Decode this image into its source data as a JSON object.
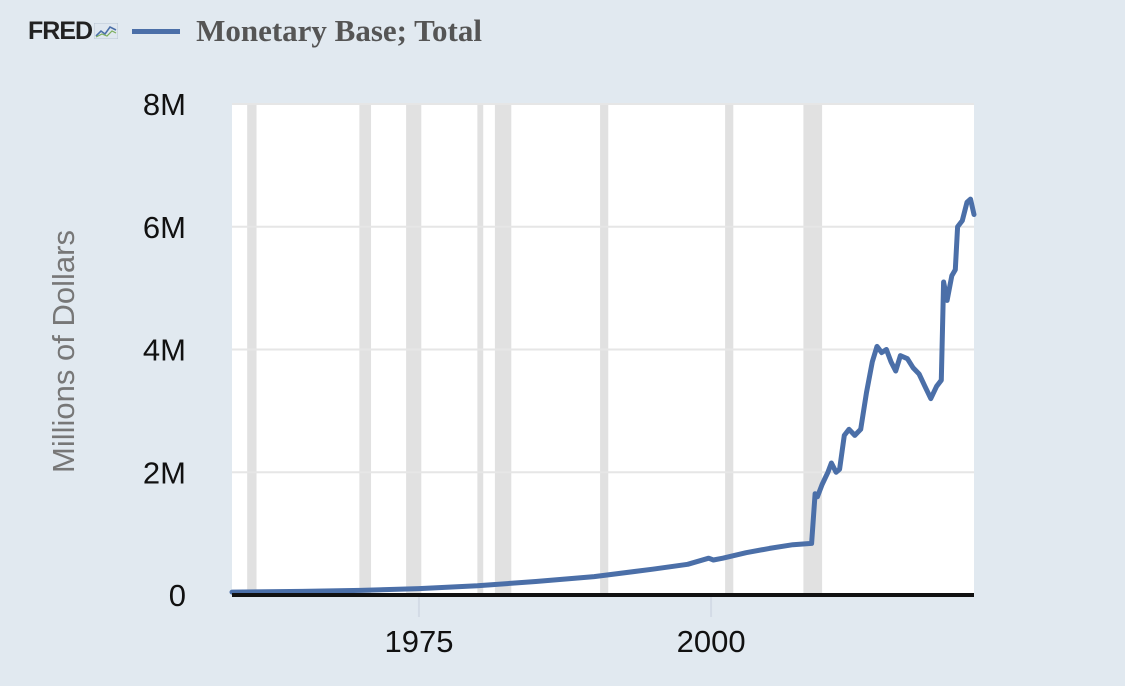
{
  "logo": {
    "text": "FRED"
  },
  "legend": {
    "series_name": "Monetary Base; Total",
    "color": "#4b6fa8"
  },
  "colors": {
    "background": "#e1e9f0",
    "plot_area": "#ffffff",
    "recession": "#e1e1e1",
    "gridline": "#e6e6e6",
    "axis": "#111111",
    "tick_text": "#111111",
    "ylabel_text": "#777777"
  },
  "chart_data": {
    "type": "line",
    "title": "Monetary Base; Total",
    "xlabel": "",
    "ylabel": "Millions of Dollars",
    "xlim": [
      1959,
      2022.5
    ],
    "ylim": [
      0,
      8000000
    ],
    "xticks": [
      {
        "value": 1975,
        "label": "1975"
      },
      {
        "value": 2000,
        "label": "2000"
      }
    ],
    "yticks": [
      {
        "value": 0,
        "label": "0"
      },
      {
        "value": 2000000,
        "label": "2M"
      },
      {
        "value": 4000000,
        "label": "4M"
      },
      {
        "value": 6000000,
        "label": "6M"
      },
      {
        "value": 8000000,
        "label": "8M"
      }
    ],
    "grid": true,
    "legend_position": "top-left",
    "recessions": [
      [
        1960.3,
        1961.1
      ],
      [
        1969.9,
        1970.9
      ],
      [
        1973.9,
        1975.2
      ],
      [
        1980.0,
        1980.5
      ],
      [
        1981.5,
        1982.9
      ],
      [
        1990.5,
        1991.2
      ],
      [
        2001.2,
        2001.9
      ],
      [
        2007.9,
        2009.5
      ]
    ],
    "series": [
      {
        "name": "Monetary Base; Total",
        "points": [
          [
            1959.0,
            48000
          ],
          [
            1965.0,
            58000
          ],
          [
            1970.0,
            75000
          ],
          [
            1975.0,
            105000
          ],
          [
            1980.0,
            150000
          ],
          [
            1985.0,
            220000
          ],
          [
            1990.0,
            300000
          ],
          [
            1995.0,
            420000
          ],
          [
            1998.0,
            500000
          ],
          [
            1999.8,
            600000
          ],
          [
            2000.2,
            570000
          ],
          [
            2001.0,
            600000
          ],
          [
            2003.0,
            690000
          ],
          [
            2005.0,
            760000
          ],
          [
            2007.0,
            820000
          ],
          [
            2008.6,
            840000
          ],
          [
            2008.9,
            1650000
          ],
          [
            2009.1,
            1600000
          ],
          [
            2009.5,
            1800000
          ],
          [
            2010.0,
            2000000
          ],
          [
            2010.3,
            2150000
          ],
          [
            2010.7,
            2000000
          ],
          [
            2011.0,
            2050000
          ],
          [
            2011.4,
            2600000
          ],
          [
            2011.8,
            2700000
          ],
          [
            2012.3,
            2600000
          ],
          [
            2012.8,
            2700000
          ],
          [
            2013.3,
            3300000
          ],
          [
            2013.8,
            3800000
          ],
          [
            2014.2,
            4050000
          ],
          [
            2014.6,
            3950000
          ],
          [
            2015.0,
            4000000
          ],
          [
            2015.4,
            3800000
          ],
          [
            2015.8,
            3650000
          ],
          [
            2016.2,
            3900000
          ],
          [
            2016.8,
            3850000
          ],
          [
            2017.3,
            3700000
          ],
          [
            2017.8,
            3600000
          ],
          [
            2018.3,
            3400000
          ],
          [
            2018.8,
            3200000
          ],
          [
            2019.3,
            3400000
          ],
          [
            2019.7,
            3500000
          ],
          [
            2019.9,
            5100000
          ],
          [
            2020.2,
            4800000
          ],
          [
            2020.6,
            5200000
          ],
          [
            2020.9,
            5300000
          ],
          [
            2021.1,
            6000000
          ],
          [
            2021.5,
            6100000
          ],
          [
            2021.9,
            6400000
          ],
          [
            2022.2,
            6450000
          ],
          [
            2022.5,
            6200000
          ]
        ]
      }
    ]
  }
}
